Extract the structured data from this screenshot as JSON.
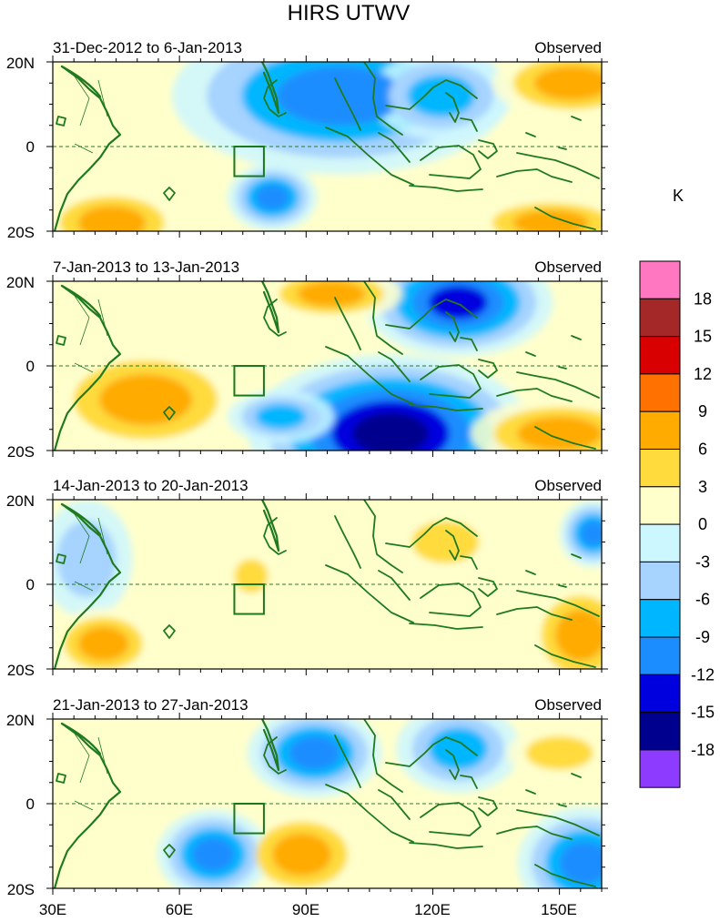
{
  "figure": {
    "title": "HIRS UTWV",
    "colorbar_units": "K"
  },
  "axes": {
    "lat_ticks": [
      "20N",
      "0",
      "20S"
    ],
    "lon_ticks": [
      "30E",
      "60E",
      "90E",
      "120E",
      "150E"
    ],
    "lon_range_deg": [
      30,
      160
    ],
    "lat_range_deg": [
      -20,
      20
    ]
  },
  "colorbar": {
    "levels": [
      "18",
      "15",
      "12",
      "9",
      "6",
      "3",
      "0",
      "-3",
      "-6",
      "-9",
      "-12",
      "-15",
      "-18"
    ],
    "colors": [
      "#ff77c0",
      "#a52828",
      "#d80000",
      "#ff7100",
      "#ffab00",
      "#ffdb3e",
      "#ffffcc",
      "#cdf7ff",
      "#a6d3ff",
      "#00b6ff",
      "#1b8dff",
      "#0000df",
      "#00008e",
      "#8d3bff"
    ]
  },
  "panels": [
    {
      "date_range": "31-Dec-2012 to 6-Jan-2013",
      "status": "Observed"
    },
    {
      "date_range": "7-Jan-2013 to 13-Jan-2013",
      "status": "Observed"
    },
    {
      "date_range": "14-Jan-2013 to 20-Jan-2013",
      "status": "Observed"
    },
    {
      "date_range": "21-Jan-2013 to 27-Jan-2013",
      "status": "Observed"
    }
  ],
  "chart_data": {
    "type": "heatmap",
    "title": "HIRS UTWV",
    "units": "K",
    "x_range": [
      30,
      160
    ],
    "y_range": [
      -20,
      20
    ],
    "contour_levels": [
      -18,
      -15,
      -12,
      -9,
      -6,
      -3,
      0,
      3,
      6,
      9,
      12,
      15,
      18
    ],
    "reference_box": {
      "lon": [
        73,
        80
      ],
      "lat": [
        -7,
        0
      ]
    },
    "anomaly_centers": [
      [
        {
          "lon": 98,
          "lat": 12,
          "rx": 15,
          "ry": 7,
          "value": -9
        },
        {
          "lon": 153,
          "lat": 15,
          "rx": 9,
          "ry": 4,
          "value": 6
        },
        {
          "lon": 148,
          "lat": -18,
          "rx": 9,
          "ry": 3,
          "value": 6
        },
        {
          "lon": 44,
          "lat": -18,
          "rx": 8,
          "ry": 4,
          "value": 6
        },
        {
          "lon": 82,
          "lat": -12,
          "rx": 4,
          "ry": 3,
          "value": -9
        },
        {
          "lon": 122,
          "lat": 12,
          "rx": 8,
          "ry": 5,
          "value": -6
        }
      ],
      [
        {
          "lon": 52,
          "lat": -8,
          "rx": 11,
          "ry": 6,
          "value": 6
        },
        {
          "lon": 110,
          "lat": -16,
          "rx": 9,
          "ry": 5,
          "value": -15
        },
        {
          "lon": 126,
          "lat": 15,
          "rx": 7,
          "ry": 4,
          "value": -12
        },
        {
          "lon": 150,
          "lat": -16,
          "rx": 10,
          "ry": 4,
          "value": 6
        },
        {
          "lon": 96,
          "lat": 17,
          "rx": 8,
          "ry": 3,
          "value": 6
        },
        {
          "lon": 84,
          "lat": -12,
          "rx": 6,
          "ry": 3,
          "value": -6
        }
      ],
      [
        {
          "lon": 42,
          "lat": -14,
          "rx": 6,
          "ry": 4,
          "value": 6
        },
        {
          "lon": 158,
          "lat": 12,
          "rx": 3,
          "ry": 3,
          "value": -9
        },
        {
          "lon": 123,
          "lat": 10,
          "rx": 8,
          "ry": 5,
          "value": 3
        },
        {
          "lon": 155,
          "lat": -12,
          "rx": 6,
          "ry": 6,
          "value": 6
        },
        {
          "lon": 77,
          "lat": 2,
          "rx": 4,
          "ry": 4,
          "value": 3
        },
        {
          "lon": 38,
          "lat": 6,
          "rx": 7,
          "ry": 9,
          "value": -3
        }
      ],
      [
        {
          "lon": 92,
          "lat": 12,
          "rx": 6,
          "ry": 4,
          "value": -9
        },
        {
          "lon": 126,
          "lat": 13,
          "rx": 7,
          "ry": 5,
          "value": -6
        },
        {
          "lon": 156,
          "lat": -14,
          "rx": 6,
          "ry": 5,
          "value": -9
        },
        {
          "lon": 89,
          "lat": -12,
          "rx": 7,
          "ry": 5,
          "value": 6
        },
        {
          "lon": 68,
          "lat": -12,
          "rx": 5,
          "ry": 4,
          "value": -9
        },
        {
          "lon": 150,
          "lat": 12,
          "rx": 8,
          "ry": 4,
          "value": 3
        }
      ]
    ]
  }
}
